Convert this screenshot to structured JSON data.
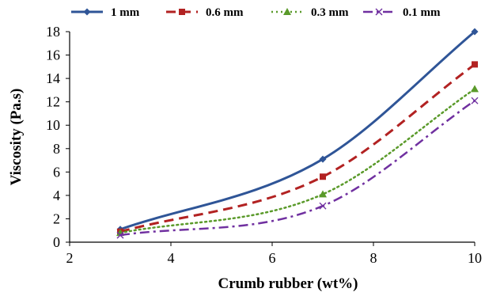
{
  "chart_data": {
    "type": "line",
    "title": "",
    "xlabel": "Crumb rubber (wt%)",
    "ylabel": "Viscosity (Pa.s)",
    "xlim": [
      2,
      10
    ],
    "ylim": [
      0,
      18
    ],
    "xticks": [
      "2",
      "4",
      "6",
      "8",
      "10"
    ],
    "yticks": [
      "0",
      "2",
      "4",
      "6",
      "8",
      "10",
      "12",
      "14",
      "16",
      "18"
    ],
    "grid": false,
    "legend_position": "top",
    "x": [
      3,
      7,
      10
    ],
    "series": [
      {
        "name": "1 mm",
        "values": [
          1.1,
          7.1,
          18.0
        ],
        "color": "#2F5597",
        "style": "solid",
        "marker": "diamond"
      },
      {
        "name": "0.6 mm",
        "values": [
          0.9,
          5.6,
          15.2
        ],
        "color": "#B22222",
        "style": "dashed",
        "marker": "square"
      },
      {
        "name": "0.3 mm",
        "values": [
          0.8,
          4.1,
          13.1
        ],
        "color": "#5A9A2A",
        "style": "dotted",
        "marker": "triangle"
      },
      {
        "name": "0.1 mm",
        "values": [
          0.6,
          3.1,
          12.1
        ],
        "color": "#7030A0",
        "style": "dashdot",
        "marker": "x"
      }
    ]
  }
}
